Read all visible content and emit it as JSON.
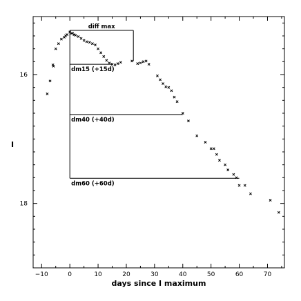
{
  "chart_data": {
    "type": "scatter",
    "title": "",
    "xlabel": "days since I maximum",
    "ylabel": "I",
    "xlim": [
      -13,
      76
    ],
    "ylim": [
      19.0,
      15.1
    ],
    "y_inverted": true,
    "grid": false,
    "x_ticks": [
      -10,
      0,
      10,
      20,
      30,
      40,
      50,
      60,
      70
    ],
    "y_ticks": [
      16,
      18
    ],
    "marker": "x",
    "series": [
      {
        "points": [
          [
            -8,
            16.3
          ],
          [
            -7,
            16.1
          ],
          [
            -6,
            15.85
          ],
          [
            -5.8,
            15.87
          ],
          [
            -5,
            15.6
          ],
          [
            -4,
            15.52
          ],
          [
            -3,
            15.45
          ],
          [
            -2,
            15.42
          ],
          [
            -1.5,
            15.4
          ],
          [
            -1,
            15.38
          ],
          [
            0,
            15.34
          ],
          [
            0.5,
            15.36
          ],
          [
            1,
            15.36
          ],
          [
            1.5,
            15.38
          ],
          [
            2,
            15.39
          ],
          [
            3,
            15.41
          ],
          [
            4,
            15.44
          ],
          [
            5,
            15.47
          ],
          [
            6,
            15.49
          ],
          [
            7,
            15.5
          ],
          [
            8,
            15.52
          ],
          [
            9,
            15.54
          ],
          [
            10,
            15.6
          ],
          [
            11,
            15.66
          ],
          [
            12,
            15.72
          ],
          [
            13,
            15.78
          ],
          [
            14,
            15.82
          ],
          [
            15,
            15.84
          ],
          [
            16,
            15.85
          ],
          [
            17,
            15.83
          ],
          [
            18,
            15.81
          ],
          [
            22,
            15.79
          ],
          [
            24,
            15.83
          ],
          [
            25,
            15.82
          ],
          [
            26,
            15.8
          ],
          [
            27,
            15.79
          ],
          [
            28,
            15.84
          ],
          [
            31,
            16.02
          ],
          [
            32,
            16.08
          ],
          [
            33,
            16.14
          ],
          [
            34,
            16.19
          ],
          [
            35,
            16.2
          ],
          [
            36,
            16.25
          ],
          [
            37,
            16.35
          ],
          [
            38,
            16.42
          ],
          [
            40,
            16.6
          ],
          [
            42,
            16.72
          ],
          [
            45,
            16.95
          ],
          [
            48,
            17.05
          ],
          [
            50,
            17.15
          ],
          [
            51,
            17.15
          ],
          [
            52,
            17.24
          ],
          [
            53,
            17.33
          ],
          [
            55,
            17.4
          ],
          [
            56,
            17.48
          ],
          [
            58,
            17.55
          ],
          [
            59,
            17.6
          ],
          [
            60,
            17.72
          ],
          [
            62,
            17.72
          ],
          [
            64,
            17.85
          ],
          [
            71,
            17.95
          ],
          [
            74,
            18.14
          ]
        ]
      }
    ],
    "annotations": [
      {
        "label": "diff max",
        "x_from": 0,
        "x_to": 22.5,
        "y_max": 15.34,
        "y_at": 15.79
      },
      {
        "label": "dm15 (+15d)",
        "x_from": 0,
        "x_to": 15,
        "y": 15.84
      },
      {
        "label": "dm40 (+40d)",
        "x_from": 0,
        "x_to": 40,
        "y": 16.62
      },
      {
        "label": "dm60 (+60d)",
        "x_from": 0,
        "x_to": 60,
        "y": 17.61
      }
    ]
  }
}
